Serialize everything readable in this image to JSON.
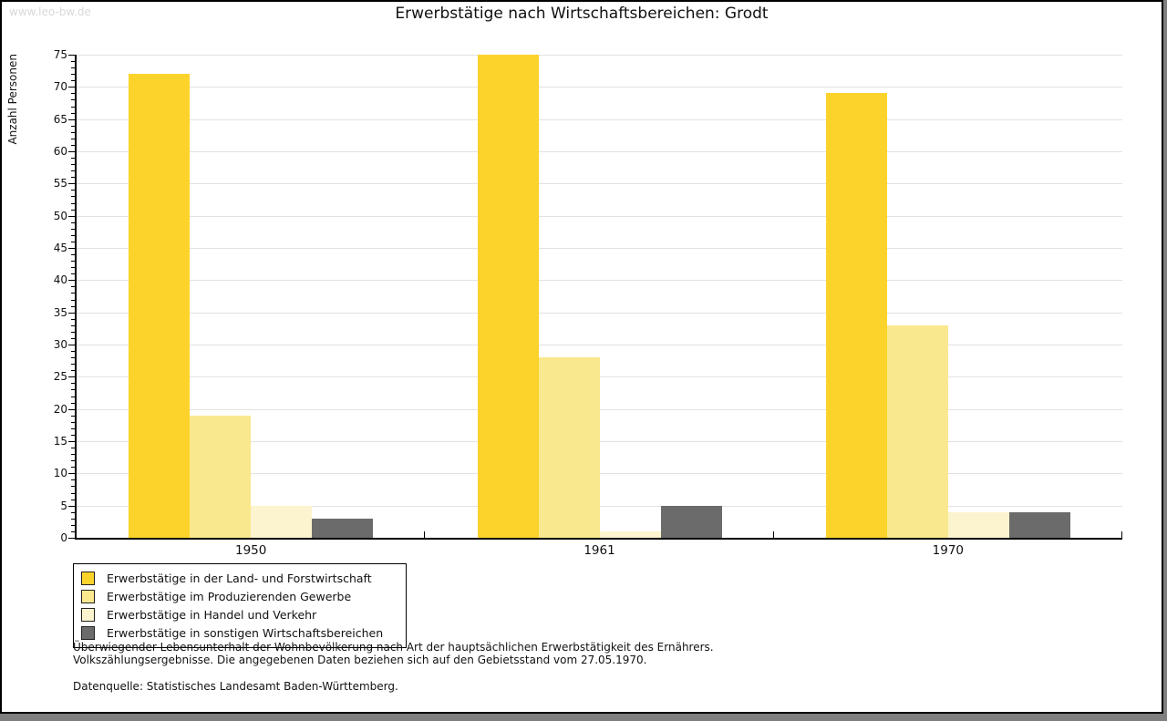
{
  "watermark": "www.leo-bw.de",
  "chart_data": {
    "type": "bar",
    "title": "Erwerbstätige nach Wirtschaftsbereichen: Grodt",
    "ylabel": "Anzahl Personen",
    "xlabel": "",
    "categories": [
      "1950",
      "1961",
      "1970"
    ],
    "series": [
      {
        "name": "Erwerbstätige in der Land- und Forstwirtschaft",
        "color": "#fcd32b",
        "values": [
          72,
          75,
          69
        ]
      },
      {
        "name": "Erwerbstätige im Produzierenden Gewerbe",
        "color": "#fae88e",
        "values": [
          19,
          28,
          33
        ]
      },
      {
        "name": "Erwerbstätige in Handel und Verkehr",
        "color": "#fcf4ce",
        "values": [
          5,
          1,
          4
        ]
      },
      {
        "name": "Erwerbstätige in sonstigen Wirtschaftsbereichen",
        "color": "#6b6b6b",
        "values": [
          3,
          5,
          4
        ]
      }
    ],
    "ylim": [
      0,
      75
    ],
    "ytick_step": 5,
    "ytick_minor_step": 1,
    "grid": true,
    "grid_color": "#e2e2e2",
    "legend_position": "bottom-left"
  },
  "footer": {
    "line1": "Überwiegender Lebensunterhalt der Wohnbevölkerung nach Art der hauptsächlichen Erwerbstätigkeit des Ernährers.",
    "line2": "Volkszählungsergebnisse. Die angegebenen Daten beziehen sich auf den Gebietsstand vom 27.05.1970.",
    "source": "Datenquelle: Statistisches Landesamt Baden-Württemberg."
  }
}
